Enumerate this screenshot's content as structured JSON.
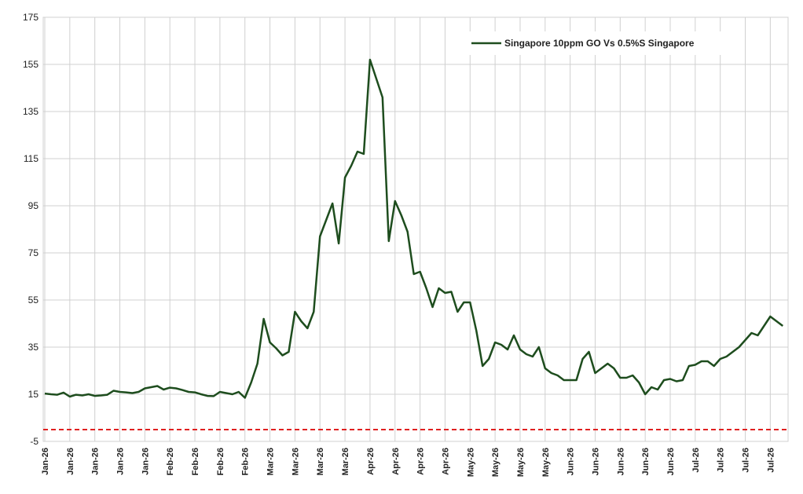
{
  "chart_data": {
    "type": "line",
    "categories": [
      "Jan-26",
      null,
      null,
      null,
      "Jan-26",
      null,
      null,
      null,
      "Jan-26",
      null,
      null,
      null,
      "Jan-26",
      null,
      null,
      null,
      "Jan-26",
      null,
      null,
      null,
      "Feb-26",
      null,
      null,
      null,
      "Feb-26",
      null,
      null,
      null,
      "Feb-26",
      null,
      null,
      null,
      "Feb-26",
      null,
      null,
      null,
      "Mar-26",
      null,
      null,
      null,
      "Mar-26",
      null,
      null,
      null,
      "Mar-26",
      null,
      null,
      null,
      "Mar-26",
      null,
      null,
      null,
      "Apr-26",
      null,
      null,
      null,
      "Apr-26",
      null,
      null,
      null,
      "Apr-26",
      null,
      null,
      null,
      "Apr-26",
      null,
      null,
      null,
      "May-26",
      null,
      null,
      null,
      "May-26",
      null,
      null,
      null,
      "May-26",
      null,
      null,
      null,
      "May-26",
      null,
      null,
      null,
      "Jun-26",
      null,
      null,
      null,
      "Jun-26",
      null,
      null,
      null,
      "Jun-26",
      null,
      null,
      null,
      "Jun-26",
      null,
      null,
      null,
      "Jun-26",
      null,
      null,
      null,
      "Jul-26",
      null,
      null,
      null,
      "Jul-26",
      null,
      null,
      null,
      "Jul-26",
      null,
      null,
      null,
      "Jul-26",
      null,
      null
    ],
    "series": [
      {
        "name": "Singapore 10ppm GO Vs 0.5%S Singapore",
        "color": "#1e4d1e",
        "values": [
          15.3,
          15,
          14.8,
          15.7,
          14,
          14.8,
          14.5,
          15,
          14.3,
          14.5,
          14.8,
          16.5,
          16,
          15.8,
          15.5,
          16,
          17.5,
          18,
          18.5,
          17,
          17.8,
          17.5,
          16.8,
          16,
          15.8,
          15,
          14.3,
          14.2,
          16,
          15.5,
          15,
          16,
          13.5,
          20,
          28,
          47,
          37,
          34.5,
          31.5,
          33,
          50,
          46,
          43,
          50,
          82,
          89,
          96,
          79,
          107,
          112,
          118,
          117,
          157,
          149,
          141,
          80,
          97,
          91,
          84,
          66,
          67,
          60,
          52,
          60,
          58,
          58.5,
          50,
          54,
          54,
          42,
          27,
          30,
          37,
          36,
          34,
          40,
          34,
          32,
          31,
          35,
          26,
          24,
          23,
          21,
          21,
          21,
          30,
          33,
          24,
          26,
          28,
          26,
          22,
          22,
          23,
          20,
          15,
          18,
          17,
          21,
          21.5,
          20.5,
          21,
          27,
          27.5,
          29,
          29,
          27,
          30,
          31,
          33,
          35,
          38,
          41,
          40,
          44,
          48,
          46,
          44
        ]
      }
    ],
    "ylim": [
      -5,
      175
    ],
    "yticks": [
      -5,
      15,
      35,
      55,
      75,
      95,
      115,
      135,
      155,
      175
    ],
    "grid": true,
    "legend": "upper right",
    "reference_line": {
      "value": 0,
      "color": "#e02020"
    }
  }
}
